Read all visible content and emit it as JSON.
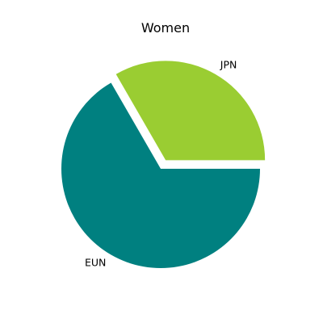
{
  "chart_data": {
    "type": "pie",
    "title": "Women",
    "categories": [
      "JPN",
      "EUN"
    ],
    "values": [
      1,
      2
    ],
    "colors": [
      "#9acd32",
      "#008080"
    ],
    "explode": [
      0.1,
      0
    ],
    "start_angle": 0,
    "direction": "counterclockwise",
    "legend": "none"
  }
}
